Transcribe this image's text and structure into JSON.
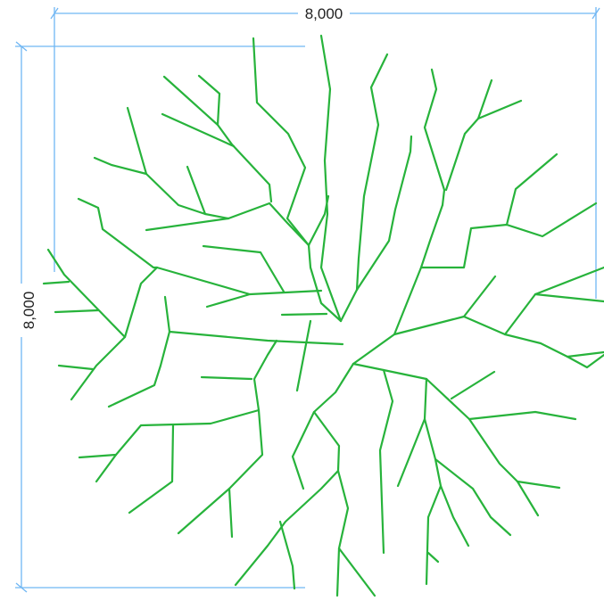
{
  "dimensions": {
    "width_label": "8,000",
    "height_label": "8,000",
    "line_color": "#6fb6f3"
  },
  "plan": {
    "branch_color": "#27b33b",
    "symbol": "tree-canopy-plan"
  }
}
